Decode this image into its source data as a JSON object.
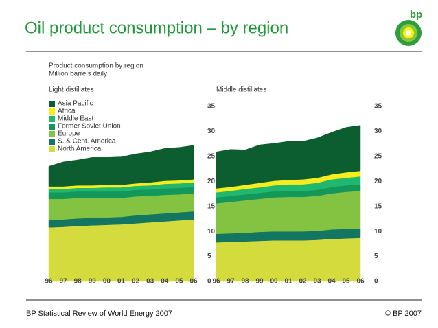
{
  "header": {
    "title": "Oil product consumption – by region",
    "logo": "bp"
  },
  "figure": {
    "title": "Product consumption by region",
    "subtitle": "Million barrels daily"
  },
  "chart_data": [
    {
      "type": "stacked-area",
      "title": "Light distillates",
      "categories": [
        "96",
        "97",
        "98",
        "99",
        "00",
        "01",
        "02",
        "03",
        "04",
        "05",
        "06"
      ],
      "ylim": [
        0,
        35
      ],
      "yticks": [
        0,
        5,
        10,
        15,
        20,
        25,
        30,
        35
      ],
      "legend": "top-left",
      "series": [
        {
          "name": "North America",
          "color": "#d3dc3c",
          "values": [
            10.8,
            10.9,
            11.1,
            11.2,
            11.3,
            11.4,
            11.6,
            11.8,
            12.0,
            12.2,
            12.4
          ]
        },
        {
          "name": "S. & Cent. America",
          "color": "#137660",
          "values": [
            1.5,
            1.5,
            1.5,
            1.5,
            1.5,
            1.5,
            1.6,
            1.6,
            1.6,
            1.6,
            1.6
          ]
        },
        {
          "name": "Europe",
          "color": "#83c341",
          "values": [
            4.2,
            4.1,
            4.1,
            4.0,
            3.9,
            3.8,
            3.8,
            3.7,
            3.7,
            3.6,
            3.6
          ]
        },
        {
          "name": "Former Soviet Union",
          "color": "#14985a",
          "values": [
            1.3,
            1.3,
            1.3,
            1.3,
            1.3,
            1.3,
            1.3,
            1.3,
            1.3,
            1.3,
            1.3
          ]
        },
        {
          "name": "Middle East",
          "color": "#20b86e",
          "values": [
            0.7,
            0.7,
            0.7,
            0.7,
            0.8,
            0.8,
            0.8,
            0.8,
            0.9,
            0.9,
            0.9
          ]
        },
        {
          "name": "Africa",
          "color": "#f7ec1c",
          "values": [
            0.5,
            0.5,
            0.5,
            0.5,
            0.5,
            0.5,
            0.5,
            0.6,
            0.6,
            0.6,
            0.6
          ]
        },
        {
          "name": "Asia Pacific",
          "color": "#0c5d2f",
          "values": [
            4.0,
            4.9,
            5.1,
            5.6,
            5.5,
            5.6,
            5.9,
            6.1,
            6.5,
            6.6,
            6.8
          ]
        }
      ]
    },
    {
      "type": "stacked-area",
      "title": "Middle distillates",
      "categories": [
        "96",
        "97",
        "98",
        "99",
        "00",
        "01",
        "02",
        "03",
        "04",
        "05",
        "06"
      ],
      "ylim": [
        0,
        35
      ],
      "yticks": [
        0,
        5,
        10,
        15,
        20,
        25,
        30,
        35
      ],
      "series": [
        {
          "color": "#d3dc3c",
          "values": [
            7.8,
            7.9,
            8.0,
            8.1,
            8.2,
            8.2,
            8.2,
            8.3,
            8.5,
            8.6,
            8.7
          ]
        },
        {
          "color": "#137660",
          "values": [
            1.7,
            1.7,
            1.7,
            1.8,
            1.8,
            1.8,
            1.8,
            1.8,
            1.9,
            1.9,
            1.9
          ]
        },
        {
          "color": "#83c341",
          "values": [
            6.1,
            6.3,
            6.5,
            6.6,
            6.8,
            6.9,
            6.9,
            7.0,
            7.2,
            7.4,
            7.5
          ]
        },
        {
          "color": "#14985a",
          "values": [
            1.2,
            1.2,
            1.2,
            1.2,
            1.2,
            1.2,
            1.2,
            1.2,
            1.3,
            1.3,
            1.3
          ]
        },
        {
          "color": "#20b86e",
          "values": [
            1.0,
            1.0,
            1.1,
            1.1,
            1.2,
            1.3,
            1.3,
            1.4,
            1.5,
            1.5,
            1.6
          ]
        },
        {
          "color": "#f7ec1c",
          "values": [
            0.8,
            0.8,
            0.8,
            0.9,
            0.9,
            0.9,
            1.0,
            1.0,
            1.0,
            1.1,
            1.1
          ]
        },
        {
          "color": "#0c5d2f",
          "values": [
            7.3,
            7.5,
            7.0,
            7.6,
            7.5,
            7.7,
            7.6,
            8.0,
            8.4,
            9.0,
            9.1
          ]
        }
      ]
    }
  ],
  "footer": {
    "source": "BP Statistical Review of World Energy 2007",
    "copyright": "© BP 2007"
  }
}
